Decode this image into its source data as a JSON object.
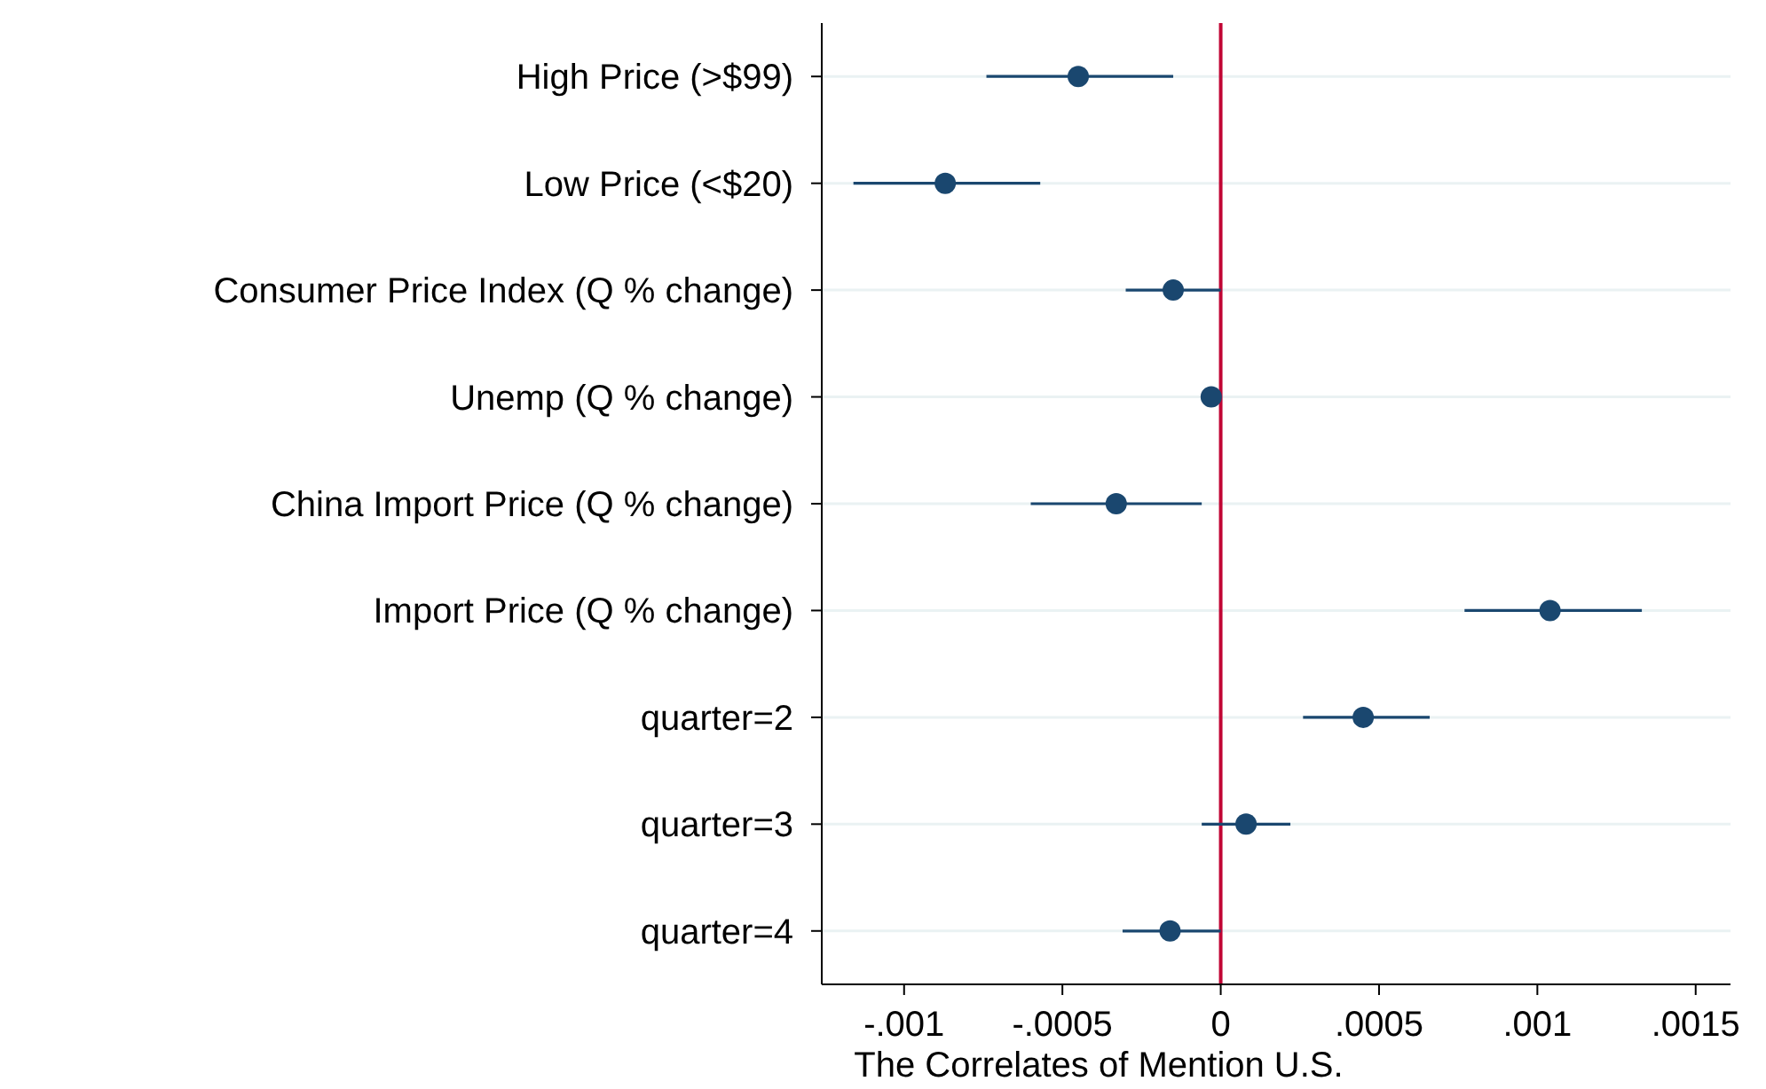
{
  "chart_data": {
    "type": "scatter",
    "orientation": "horizontal",
    "xlabel": "The Correlates of Mention U.S.",
    "categories": [
      "High Price (>$99)",
      "Low Price (<$20)",
      "Consumer Price Index (Q % change)",
      "Unemp (Q % change)",
      "China Import Price (Q % change)",
      "Import Price (Q % change)",
      "quarter=2",
      "quarter=3",
      "quarter=4"
    ],
    "color": "#1a476f",
    "values": [
      -0.00045,
      -0.00087,
      -0.00015,
      -3e-05,
      -0.00033,
      0.00104,
      0.00045,
      8e-05,
      -0.00016
    ],
    "errors": [
      [
        -0.00074,
        -0.00015
      ],
      [
        -0.00116,
        -0.00057
      ],
      [
        -0.0003,
        0
      ],
      [
        -6e-05,
        0
      ],
      [
        -0.0006,
        -6e-05
      ],
      [
        0.00077,
        0.00133
      ],
      [
        0.00026,
        0.00066
      ],
      [
        -6e-05,
        0.00022
      ],
      [
        -0.00031,
        0
      ]
    ],
    "xlim": [
      -0.00126,
      0.00161
    ],
    "xticks": [
      {
        "value": -0.001,
        "label": "-.001"
      },
      {
        "value": -0.0005,
        "label": "-.0005"
      },
      0,
      {
        "value": 0.0005,
        "label": ".0005"
      },
      {
        "value": 0.001,
        "label": ".001"
      },
      {
        "value": 0.0015,
        "label": ".0015"
      }
    ],
    "ref_lines": [
      {
        "axis": "x",
        "value": 0,
        "color": "#c10534"
      }
    ],
    "grid": "y",
    "marker": "circle"
  }
}
